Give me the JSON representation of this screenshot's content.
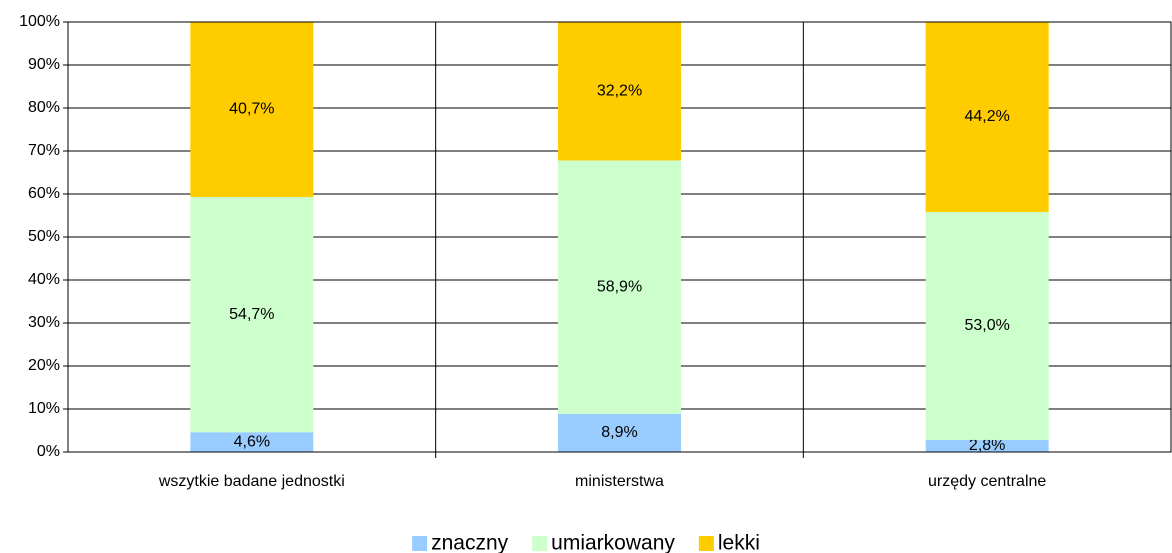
{
  "chart_data": {
    "type": "stacked_bar",
    "categories": [
      "wszytkie badane jednostki",
      "ministerstwa",
      "urzędy centralne"
    ],
    "series": [
      {
        "name": "znaczny",
        "color": "#99ccff",
        "values": [
          4.6,
          8.9,
          2.8
        ],
        "value_labels": [
          "4,6%",
          "8,9%",
          "2,8%"
        ]
      },
      {
        "name": "umiarkowany",
        "color": "#ccffcc",
        "values": [
          54.7,
          58.9,
          53.0
        ],
        "value_labels": [
          "54,7%",
          "58,9%",
          "53,0%"
        ]
      },
      {
        "name": "lekki",
        "color": "#ffcc00",
        "values": [
          40.7,
          32.2,
          44.2
        ],
        "value_labels": [
          "40,7%",
          "32,2%",
          "44,2%"
        ]
      }
    ],
    "ylim": [
      0,
      100
    ],
    "yticks": [
      {
        "value": 0,
        "label": "0%"
      },
      {
        "value": 10,
        "label": "10%"
      },
      {
        "value": 20,
        "label": "20%"
      },
      {
        "value": 30,
        "label": "30%"
      },
      {
        "value": 40,
        "label": "40%"
      },
      {
        "value": 50,
        "label": "50%"
      },
      {
        "value": 60,
        "label": "60%"
      },
      {
        "value": 70,
        "label": "70%"
      },
      {
        "value": 80,
        "label": "80%"
      },
      {
        "value": 90,
        "label": "90%"
      },
      {
        "value": 100,
        "label": "100%"
      }
    ],
    "grid": true,
    "legend": "bottom"
  }
}
